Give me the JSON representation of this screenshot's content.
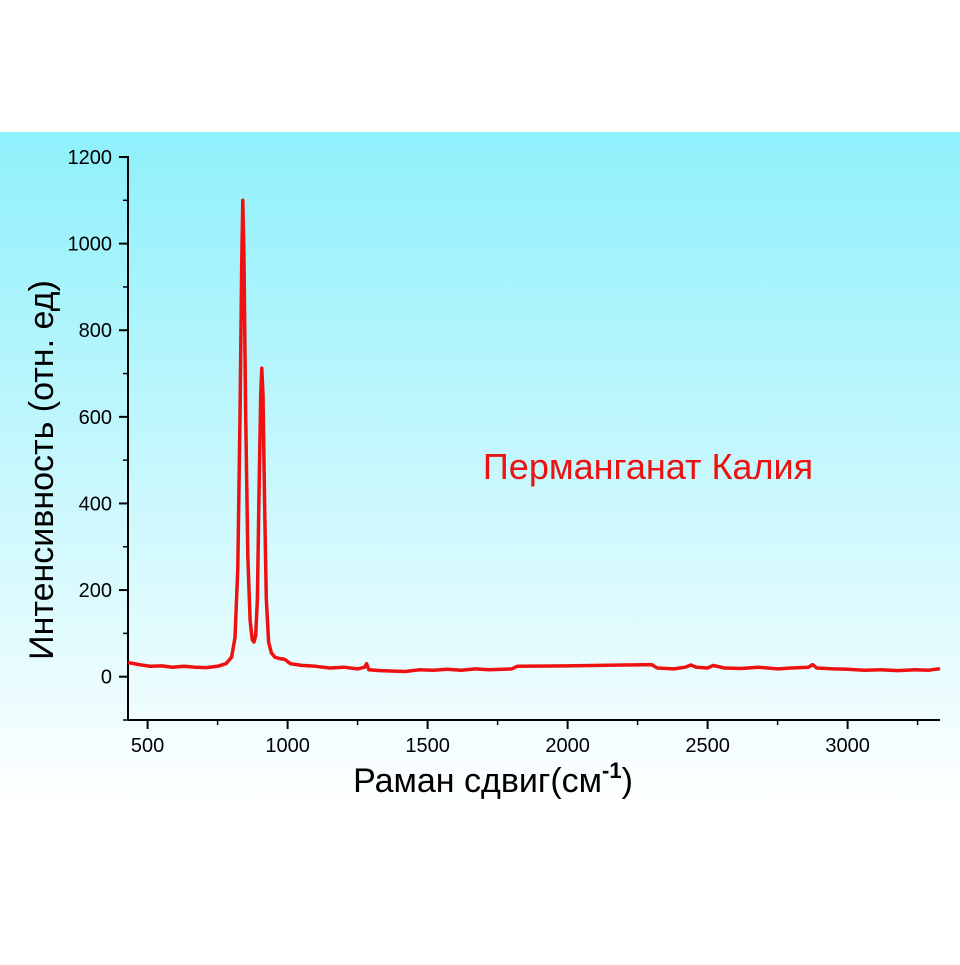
{
  "chart_data": {
    "type": "line",
    "title": "",
    "annotation": "Перманганат Калия",
    "xlabel_main": "Раман сдвиг(см",
    "xlabel_sup": "-1",
    "xlabel_close": ")",
    "ylabel": "Интенсивность (отн. ед)",
    "xlim": [
      430,
      3330
    ],
    "ylim": [
      -100,
      1200
    ],
    "x_ticks": [
      500,
      1000,
      1500,
      2000,
      2500,
      3000
    ],
    "x_tick_labels": [
      "500",
      "1000",
      "1500",
      "2000",
      "2500",
      "3000"
    ],
    "y_ticks": [
      0,
      200,
      400,
      600,
      800,
      1000,
      1200
    ],
    "y_tick_labels": [
      "0",
      "200",
      "400",
      "600",
      "800",
      "1000",
      "1200"
    ],
    "grid": false,
    "colors": {
      "line": "#ee1111",
      "annotation": "#ee1111",
      "bg_top": "#8ef0fb",
      "bg_bottom": "#ffffff",
      "axis": "#000000"
    },
    "series": [
      {
        "name": "Перманганат Калия",
        "x": [
          435,
          470,
          510,
          550,
          590,
          630,
          670,
          710,
          750,
          780,
          800,
          812,
          822,
          830,
          836,
          840,
          844,
          850,
          858,
          866,
          874,
          880,
          886,
          892,
          898,
          904,
          908,
          912,
          918,
          924,
          932,
          942,
          955,
          970,
          990,
          1010,
          1050,
          1100,
          1150,
          1200,
          1250,
          1275,
          1282,
          1290,
          1330,
          1380,
          1420,
          1470,
          1520,
          1570,
          1620,
          1670,
          1720,
          1770,
          1800,
          1820,
          2000,
          2200,
          2300,
          2320,
          2380,
          2420,
          2440,
          2460,
          2500,
          2520,
          2560,
          2620,
          2680,
          2750,
          2800,
          2860,
          2875,
          2890,
          2950,
          3000,
          3060,
          3120,
          3180,
          3240,
          3290,
          3325
        ],
        "y": [
          32,
          28,
          24,
          25,
          22,
          24,
          22,
          21,
          24,
          30,
          45,
          90,
          250,
          600,
          950,
          1100,
          980,
          620,
          280,
          130,
          85,
          80,
          95,
          180,
          420,
          650,
          712,
          650,
          400,
          180,
          80,
          55,
          45,
          42,
          40,
          30,
          26,
          24,
          20,
          22,
          18,
          22,
          30,
          16,
          14,
          13,
          12,
          16,
          15,
          17,
          15,
          18,
          16,
          17,
          18,
          24,
          25,
          27,
          28,
          20,
          18,
          22,
          27,
          22,
          20,
          26,
          20,
          19,
          22,
          18,
          20,
          22,
          28,
          20,
          18,
          17,
          15,
          16,
          14,
          16,
          15,
          18
        ]
      }
    ]
  }
}
